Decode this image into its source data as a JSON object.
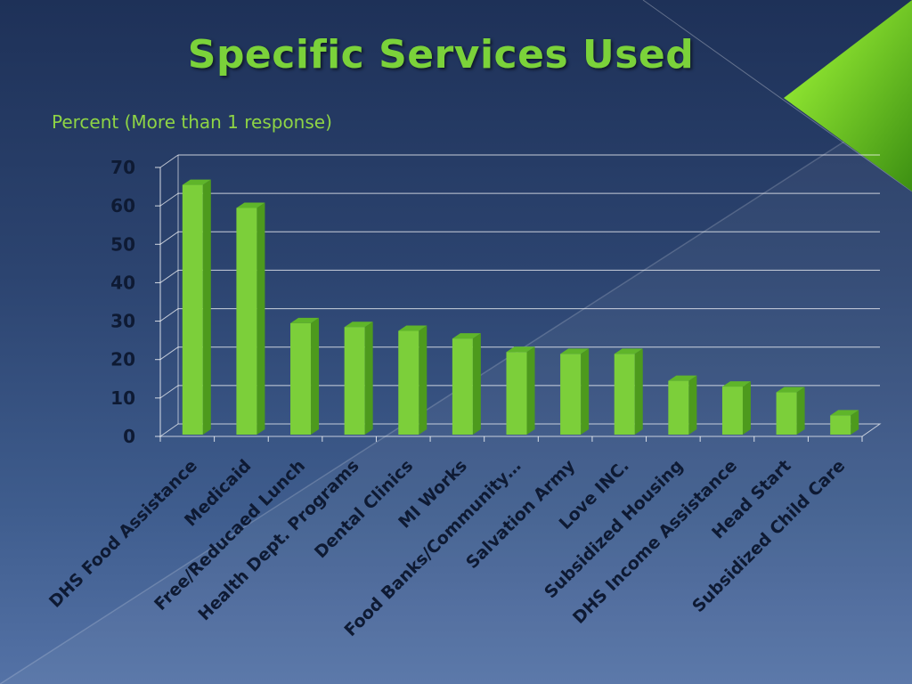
{
  "slide": {
    "title": "Specific Services Used"
  },
  "chart_data": {
    "type": "bar",
    "title": "",
    "subtitle": "Percent (More than 1 response)",
    "xlabel": "",
    "ylabel": "",
    "ylim": [
      0,
      70
    ],
    "yticks": [
      0,
      10,
      20,
      30,
      40,
      50,
      60,
      70
    ],
    "grid": true,
    "legend": "none",
    "bar_color": "#7ccf3a",
    "categories": [
      "DHS Food Assistance",
      "Medicaid",
      "Free/Reducaed Lunch",
      "Health Dept. Programs",
      "Dental Clinics",
      "MI Works",
      "Food Banks/Community…",
      "Salvation Army",
      "Love INC.",
      "Subsidized Housing",
      "DHS Income Assistance",
      "Head Start",
      "Subsidized Child Care"
    ],
    "values": [
      65,
      59,
      29,
      28,
      27,
      25,
      21.5,
      21,
      21,
      14,
      12.5,
      11,
      5
    ]
  }
}
